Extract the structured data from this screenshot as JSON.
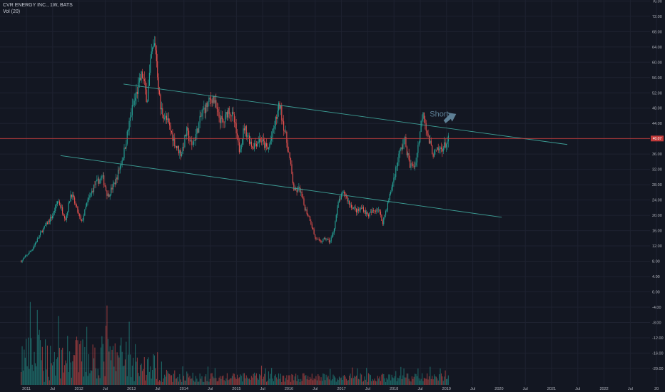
{
  "legend": {
    "symbol_line": "CVR ENERGY INC., 1W, BATS",
    "volume_line": "Vol (20)"
  },
  "chart_data": {
    "type": "candlestick",
    "title": "CVR ENERGY INC., 1W, BATS",
    "indicator": "Vol (20)",
    "price_axis": {
      "ticks": [
        "76.00",
        "72.00",
        "68.00",
        "64.00",
        "60.00",
        "56.00",
        "52.00",
        "48.00",
        "44.00",
        "40.00",
        "36.00",
        "32.00",
        "28.00",
        "24.00",
        "20.00",
        "16.00",
        "12.00",
        "8.00",
        "4.00",
        "0.00",
        "-4.00",
        "-8.00",
        "-12.00",
        "-16.00",
        "-20.00"
      ],
      "range": [
        -22,
        76
      ]
    },
    "time_axis": {
      "ticks": [
        "2011",
        "Jul",
        "2012",
        "Jul",
        "2013",
        "Jul",
        "2014",
        "Jul",
        "2015",
        "Jul",
        "2016",
        "Jul",
        "2017",
        "Jul",
        "2018",
        "Jul",
        "2019",
        "Jul",
        "2020",
        "Jul",
        "2021",
        "Jul",
        "2022",
        "Jul",
        "20"
      ],
      "range": [
        2011.0,
        2023.4
      ]
    },
    "last_price": "40.07",
    "annotation": "Short",
    "trendlines": [
      {
        "name": "upper-channel",
        "points": [
          [
            2012.85,
            54.3
          ],
          [
            2021.3,
            38.5
          ]
        ]
      },
      {
        "name": "lower-channel",
        "points": [
          [
            2011.65,
            35.6
          ],
          [
            2020.05,
            19.5
          ]
        ]
      }
    ],
    "price_keypoints": [
      [
        2010.9,
        8
      ],
      [
        2011.1,
        11
      ],
      [
        2011.3,
        16
      ],
      [
        2011.5,
        20
      ],
      [
        2011.6,
        24
      ],
      [
        2011.75,
        19
      ],
      [
        2011.85,
        26
      ],
      [
        2011.95,
        22
      ],
      [
        2012.05,
        18
      ],
      [
        2012.15,
        23
      ],
      [
        2012.3,
        28
      ],
      [
        2012.45,
        30
      ],
      [
        2012.55,
        25
      ],
      [
        2012.7,
        29
      ],
      [
        2012.85,
        36
      ],
      [
        2013.0,
        47
      ],
      [
        2013.1,
        52
      ],
      [
        2013.2,
        57
      ],
      [
        2013.3,
        50
      ],
      [
        2013.38,
        62
      ],
      [
        2013.45,
        65
      ],
      [
        2013.55,
        48
      ],
      [
        2013.7,
        44
      ],
      [
        2013.85,
        38
      ],
      [
        2013.95,
        36
      ],
      [
        2014.05,
        42
      ],
      [
        2014.15,
        38
      ],
      [
        2014.25,
        42
      ],
      [
        2014.35,
        47
      ],
      [
        2014.45,
        49
      ],
      [
        2014.55,
        51
      ],
      [
        2014.65,
        46
      ],
      [
        2014.75,
        44
      ],
      [
        2014.85,
        48
      ],
      [
        2014.95,
        45
      ],
      [
        2015.05,
        37
      ],
      [
        2015.15,
        43
      ],
      [
        2015.3,
        38
      ],
      [
        2015.45,
        40
      ],
      [
        2015.6,
        37
      ],
      [
        2015.7,
        42
      ],
      [
        2015.82,
        49
      ],
      [
        2015.92,
        42
      ],
      [
        2016.0,
        36
      ],
      [
        2016.1,
        26
      ],
      [
        2016.2,
        27
      ],
      [
        2016.3,
        22
      ],
      [
        2016.4,
        19
      ],
      [
        2016.5,
        14
      ],
      [
        2016.6,
        13
      ],
      [
        2016.7,
        14
      ],
      [
        2016.78,
        13
      ],
      [
        2016.85,
        16
      ],
      [
        2016.95,
        24
      ],
      [
        2017.05,
        26
      ],
      [
        2017.15,
        23
      ],
      [
        2017.3,
        21
      ],
      [
        2017.4,
        22
      ],
      [
        2017.5,
        20
      ],
      [
        2017.6,
        21
      ],
      [
        2017.7,
        22
      ],
      [
        2017.78,
        18
      ],
      [
        2017.9,
        24
      ],
      [
        2018.0,
        30
      ],
      [
        2018.1,
        36
      ],
      [
        2018.2,
        40
      ],
      [
        2018.3,
        33
      ],
      [
        2018.4,
        33
      ],
      [
        2018.48,
        40
      ],
      [
        2018.55,
        48
      ],
      [
        2018.65,
        40
      ],
      [
        2018.75,
        36
      ],
      [
        2018.85,
        37
      ],
      [
        2018.95,
        38
      ],
      [
        2019.05,
        40
      ]
    ]
  }
}
